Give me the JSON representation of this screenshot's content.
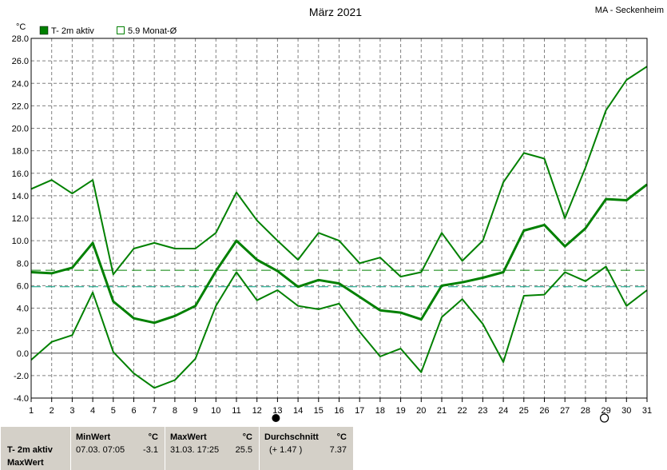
{
  "header": {
    "title": "März 2021",
    "station": "MA - Seckenheim"
  },
  "legend": {
    "item1": "T- 2m aktiv",
    "item2": "5.9 Monat-Ø"
  },
  "colors": {
    "series": "#008000",
    "avg_line": "#008000",
    "monthly_line": "#00a080",
    "zero_line": "#808080",
    "grid": "#808080",
    "footer_bg": "#d4d0c8"
  },
  "chart_data": {
    "type": "line",
    "title": "März 2021",
    "ylabel": "°C",
    "ylim": [
      -4,
      28
    ],
    "yticks": [
      "-4.0",
      "-2.0",
      "0.0",
      "2.0",
      "4.0",
      "6.0",
      "8.0",
      "10.0",
      "12.0",
      "14.0",
      "16.0",
      "18.0",
      "20.0",
      "22.0",
      "24.0",
      "26.0",
      "28.0"
    ],
    "x": [
      1,
      2,
      3,
      4,
      5,
      6,
      7,
      8,
      9,
      10,
      11,
      12,
      13,
      14,
      15,
      16,
      17,
      18,
      19,
      20,
      21,
      22,
      23,
      24,
      25,
      26,
      27,
      28,
      29,
      30,
      31
    ],
    "series": [
      {
        "name": "T- 2m aktiv",
        "role": "max",
        "values": [
          14.6,
          15.4,
          14.2,
          15.4,
          7.0,
          9.3,
          9.8,
          9.3,
          9.3,
          10.7,
          14.3,
          11.8,
          10.0,
          8.3,
          10.7,
          10.0,
          8.0,
          8.5,
          6.8,
          7.2,
          10.7,
          8.2,
          10.0,
          15.2,
          17.8,
          17.3,
          12.0,
          16.5,
          21.6,
          24.3,
          25.5
        ]
      },
      {
        "role": "mean",
        "values": [
          7.2,
          7.1,
          7.6,
          9.8,
          4.6,
          3.1,
          2.7,
          3.3,
          4.2,
          7.3,
          10.0,
          8.3,
          7.3,
          5.9,
          6.5,
          6.2,
          5.0,
          3.8,
          3.6,
          3.0,
          6.0,
          6.3,
          6.7,
          7.2,
          10.9,
          11.4,
          9.5,
          11.1,
          13.7,
          13.6,
          15.0
        ]
      },
      {
        "role": "min",
        "values": [
          -0.6,
          1.0,
          1.6,
          5.4,
          0.1,
          -1.8,
          -3.1,
          -2.4,
          -0.5,
          4.2,
          7.2,
          4.7,
          5.6,
          4.2,
          3.9,
          4.4,
          1.9,
          -0.3,
          0.4,
          -1.7,
          3.2,
          4.8,
          2.6,
          -0.8,
          5.1,
          5.2,
          7.2,
          6.4,
          7.7,
          4.2,
          5.6
        ]
      }
    ],
    "reference_lines": [
      {
        "name": "T- 2m aktiv",
        "value": 7.37
      },
      {
        "name": "5.9 Monat-Ø",
        "value": 5.9
      }
    ],
    "moon_phases": [
      {
        "day": 13,
        "phase": "new"
      },
      {
        "day": 29,
        "phase": "full"
      }
    ],
    "grid": true
  },
  "footer": {
    "row1": "T- 2m aktiv",
    "row2": "MaxWert",
    "min_label": "MinWert",
    "min_unit": "°C",
    "min_datetime": "07.03.  07:05",
    "min_value": "-3.1",
    "max_label": "MaxWert",
    "max_unit": "°C",
    "max_datetime": "31.03.  17:25",
    "max_value": "25.5",
    "avg_label": "Durchschnitt",
    "avg_unit": "°C",
    "avg_delta": "(+ 1.47 )",
    "avg_value": "7.37"
  }
}
